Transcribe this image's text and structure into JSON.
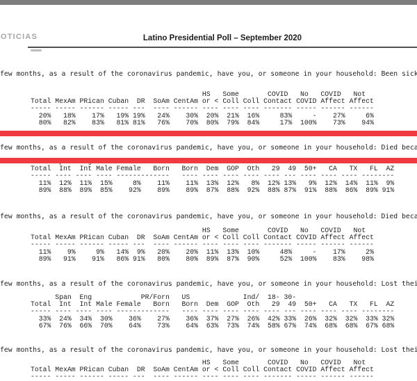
{
  "header": {
    "brand": "OTICIAS",
    "title": "Latino Presidential Poll – September 2020"
  },
  "accent": {
    "red_bar": "#ee3a40",
    "top_bar": "#7d7d7d"
  },
  "banners": {
    "origin_education_covid": {
      "width": 84,
      "columns": [
        {
          "label": "Total",
          "end": 4,
          "dash": 5
        },
        {
          "label": "MexAm",
          "end": 10,
          "dash": 5
        },
        {
          "label": "PRican",
          "end": 17,
          "dash": 6
        },
        {
          "label": "Cuban",
          "end": 23,
          "dash": 5
        },
        {
          "label": "DR",
          "end": 27,
          "dash": 3
        },
        {
          "label": "SoAm",
          "end": 33,
          "dash": 4
        },
        {
          "label": "CentAm",
          "end": 40,
          "dash": 6
        },
        {
          "top": "HS",
          "topEnd": 43,
          "label": "or <",
          "end": 45,
          "dash": 4
        },
        {
          "top": "Some",
          "topEnd": 50,
          "label": "Coll",
          "end": 50,
          "dash": 4
        },
        {
          "label": "Coll",
          "end": 55,
          "dash": 4
        },
        {
          "top": "COVID",
          "topEnd": 62,
          "label": "Contact",
          "end": 63,
          "dash": 7
        },
        {
          "top": "No",
          "topEnd": 67,
          "label": "COVID",
          "end": 69,
          "dash": 5
        },
        {
          "top": "COVID",
          "topEnd": 75,
          "label": "Affect",
          "end": 76,
          "dash": 6
        },
        {
          "top": "Not",
          "topEnd": 81,
          "label": "Affect",
          "end": 83,
          "dash": 6
        }
      ]
    },
    "demographics_party_age_state": {
      "width": 89,
      "columns": [
        {
          "label": "Total",
          "end": 4,
          "dash": 5
        },
        {
          "top": "Span",
          "topEnd": 9,
          "label": "Int",
          "end": 9,
          "dash": 4
        },
        {
          "top": "Eng",
          "topEnd": 14,
          "label": "Int",
          "end": 14,
          "dash": 4
        },
        {
          "label": "Male",
          "end": 19,
          "dash": 4
        },
        {
          "label": "Female",
          "end": 26,
          "dash": 6
        },
        {
          "top": "PR/Forn",
          "topEnd": 33,
          "label": "Born",
          "end": 33,
          "dash": 7
        },
        {
          "top": "US",
          "topEnd": 38,
          "label": "Born",
          "end": 40,
          "dash": 4
        },
        {
          "label": "Dem",
          "end": 45,
          "dash": 4
        },
        {
          "label": "GOP",
          "end": 50,
          "dash": 4
        },
        {
          "top": "Ind/",
          "topEnd": 55,
          "label": "Oth",
          "end": 55,
          "dash": 4
        },
        {
          "top": "18-",
          "topEnd": 60,
          "label": "29",
          "end": 60,
          "dash": 4
        },
        {
          "top": "30-",
          "topEnd": 64,
          "label": "49",
          "end": 64,
          "dash": 3
        },
        {
          "label": "50+",
          "end": 69,
          "dash": 4
        },
        {
          "label": "CA",
          "end": 74,
          "dash": 4
        },
        {
          "label": "TX",
          "end": 79,
          "dash": 4
        },
        {
          "label": "FL",
          "end": 84,
          "dash": 4
        },
        {
          "label": "AZ",
          "end": 88,
          "dash": 4
        }
      ]
    }
  },
  "sections": [
    {
      "question": "few months, as a result of the coronavirus pandemic, have you, or someone in your household: Been sick",
      "banner": "origin_education_covid",
      "rows": [
        [
          "20%",
          "18%",
          "17%",
          "19%",
          "19%",
          "24%",
          "30%",
          "20%",
          "21%",
          "16%",
          "83%",
          "-",
          "27%",
          "6%"
        ],
        [
          "80%",
          "82%",
          "83%",
          "81%",
          "81%",
          "76%",
          "70%",
          "80%",
          "79%",
          "84%",
          "17%",
          "100%",
          "73%",
          "94%"
        ]
      ]
    },
    {
      "question": "few months, as a result of the coronavirus pandemic, have you, or someone in your household: Died becau",
      "banner": "demographics_party_age_state",
      "rows": [
        [
          "11%",
          "12%",
          "11%",
          "15%",
          "8%",
          "11%",
          "11%",
          "13%",
          "12%",
          "8%",
          "12%",
          "13%",
          "9%",
          "12%",
          "14%",
          "11%",
          "9%"
        ],
        [
          "89%",
          "88%",
          "89%",
          "85%",
          "92%",
          "89%",
          "89%",
          "87%",
          "88%",
          "92%",
          "88%",
          "87%",
          "91%",
          "88%",
          "86%",
          "89%",
          "91%"
        ]
      ]
    },
    {
      "question": "few months, as a result of the coronavirus pandemic, have you, or someone in your household: Died becau",
      "banner": "origin_education_covid",
      "rows": [
        [
          "11%",
          "9%",
          "9%",
          "14%",
          "9%",
          "20%",
          "20%",
          "11%",
          "13%",
          "10%",
          "48%",
          "-",
          "17%",
          "2%"
        ],
        [
          "89%",
          "91%",
          "91%",
          "86%",
          "91%",
          "80%",
          "80%",
          "89%",
          "87%",
          "90%",
          "52%",
          "100%",
          "83%",
          "98%"
        ]
      ]
    },
    {
      "question": "few months, as a result of the coronavirus pandemic, have you, or someone in your household: Lost their",
      "banner": "demographics_party_age_state",
      "rows": [
        [
          "33%",
          "24%",
          "34%",
          "30%",
          "36%",
          "27%",
          "36%",
          "37%",
          "27%",
          "26%",
          "42%",
          "33%",
          "26%",
          "32%",
          "32%",
          "33%",
          "32%"
        ],
        [
          "67%",
          "76%",
          "66%",
          "70%",
          "64%",
          "73%",
          "64%",
          "63%",
          "73%",
          "74%",
          "58%",
          "67%",
          "74%",
          "68%",
          "68%",
          "67%",
          "68%"
        ]
      ]
    },
    {
      "question": "few months, as a result of the coronavirus pandemic, have you, or someone in your household: Lost their",
      "banner": "origin_education_covid",
      "rows": []
    }
  ]
}
